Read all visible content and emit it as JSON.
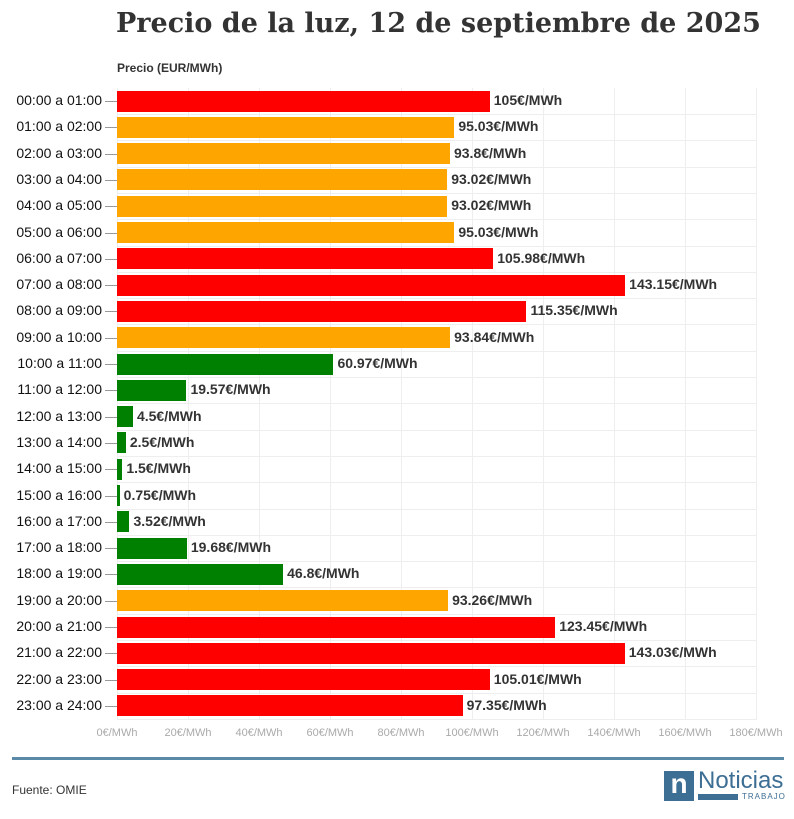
{
  "chart_data": {
    "type": "bar",
    "orientation": "horizontal",
    "title": "Precio de la luz, 12 de septiembre de 2025",
    "xlabel": "",
    "ylabel": "Precio (EUR/MWh)",
    "xlim": [
      0,
      180
    ],
    "x_ticks": [
      "0€/MWh",
      "20€/MWh",
      "40€/MWh",
      "60€/MWh",
      "80€/MWh",
      "100€/MWh",
      "120€/MWh",
      "140€/MWh",
      "160€/MWh",
      "180€/MWh"
    ],
    "grid": true,
    "categories": [
      "00:00 a 01:00",
      "01:00 a 02:00",
      "02:00 a 03:00",
      "03:00 a 04:00",
      "04:00 a 05:00",
      "05:00 a 06:00",
      "06:00 a 07:00",
      "07:00 a 08:00",
      "08:00 a 09:00",
      "09:00 a 10:00",
      "10:00 a 11:00",
      "11:00 a 12:00",
      "12:00 a 13:00",
      "13:00 a 14:00",
      "14:00 a 15:00",
      "15:00 a 16:00",
      "16:00 a 17:00",
      "17:00 a 18:00",
      "18:00 a 19:00",
      "19:00 a 20:00",
      "20:00 a 21:00",
      "21:00 a 22:00",
      "22:00 a 23:00",
      "23:00 a 24:00"
    ],
    "values": [
      105,
      95.03,
      93.8,
      93.02,
      93.02,
      95.03,
      105.98,
      143.15,
      115.35,
      93.84,
      60.97,
      19.57,
      4.5,
      2.5,
      1.5,
      0.75,
      3.52,
      19.68,
      46.8,
      93.26,
      123.45,
      143.03,
      105.01,
      97.35
    ],
    "data_labels": [
      "105€/MWh",
      "95.03€/MWh",
      "93.8€/MWh",
      "93.02€/MWh",
      "93.02€/MWh",
      "95.03€/MWh",
      "105.98€/MWh",
      "143.15€/MWh",
      "115.35€/MWh",
      "93.84€/MWh",
      "60.97€/MWh",
      "19.57€/MWh",
      "4.5€/MWh",
      "2.5€/MWh",
      "1.5€/MWh",
      "0.75€/MWh",
      "3.52€/MWh",
      "19.68€/MWh",
      "46.8€/MWh",
      "93.26€/MWh",
      "123.45€/MWh",
      "143.03€/MWh",
      "105.01€/MWh",
      "97.35€/MWh"
    ],
    "bar_colors": [
      "red",
      "orange",
      "orange",
      "orange",
      "orange",
      "orange",
      "red",
      "red",
      "red",
      "orange",
      "green",
      "green",
      "green",
      "green",
      "green",
      "green",
      "green",
      "green",
      "green",
      "orange",
      "red",
      "red",
      "red",
      "red"
    ]
  },
  "colors": {
    "red": "#ff0000",
    "orange": "#ffa500",
    "green": "#008000"
  },
  "footer": {
    "source": "Fuente: OMIE",
    "logo_name": "Noticias",
    "logo_sub": "TRABAJO",
    "logo_letter": "n"
  }
}
